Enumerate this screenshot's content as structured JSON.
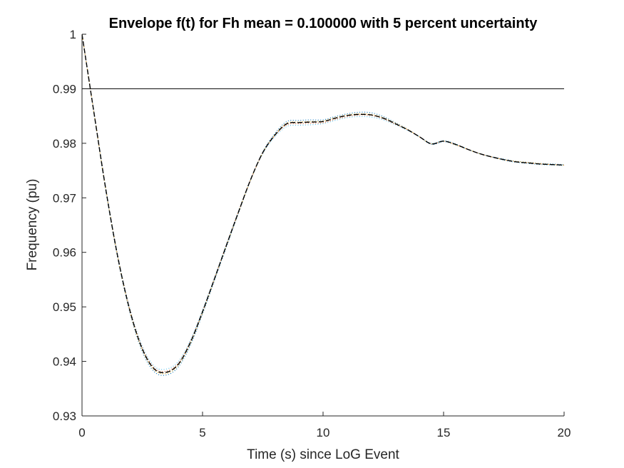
{
  "chart_data": {
    "type": "line",
    "title": "Envelope f(t) for Fh mean = 0.100000 with 5 percent uncertainty",
    "xlabel": "Time (s) since LoG Event",
    "ylabel": "Frequency (pu)",
    "xlim": [
      0,
      20
    ],
    "ylim": [
      0.93,
      1.0
    ],
    "xticks": [
      0,
      5,
      10,
      15,
      20
    ],
    "yticks": [
      0.93,
      0.94,
      0.95,
      0.96,
      0.97,
      0.98,
      0.99,
      1
    ],
    "xtick_labels": [
      "0",
      "5",
      "10",
      "15",
      "20"
    ],
    "ytick_labels": [
      "0.93",
      "0.94",
      "0.95",
      "0.96",
      "0.97",
      "0.98",
      "0.99",
      "1"
    ],
    "grid": false,
    "legend": "none",
    "reference_line": {
      "y": 0.99,
      "color": "#000000"
    },
    "x": [
      0,
      0.5,
      1,
      1.5,
      2,
      2.5,
      3,
      3.5,
      4,
      4.5,
      5,
      5.5,
      6,
      6.5,
      7,
      7.5,
      8,
      8.5,
      9,
      9.5,
      10,
      10.5,
      11,
      11.5,
      12,
      12.5,
      13,
      13.5,
      14,
      14.5,
      15,
      15.5,
      16,
      16.5,
      17,
      17.5,
      18,
      18.5,
      19,
      19.5,
      20
    ],
    "series": [
      {
        "style": "dashed",
        "color": "#000000",
        "values": [
          1.0,
          0.9855,
          0.9712,
          0.9588,
          0.9491,
          0.9423,
          0.9386,
          0.938,
          0.9395,
          0.9435,
          0.9491,
          0.9552,
          0.9614,
          0.9675,
          0.9734,
          0.9783,
          0.9815,
          0.9836,
          0.9838,
          0.9839,
          0.984,
          0.9846,
          0.9851,
          0.9853,
          0.9852,
          0.9846,
          0.9836,
          0.9825,
          0.9812,
          0.9799,
          0.9804,
          0.9798,
          0.9789,
          0.9781,
          0.9775,
          0.977,
          0.9766,
          0.9764,
          0.9762,
          0.9761,
          0.976
        ]
      },
      {
        "style": "dotted",
        "color": "#0072bd",
        "values": [
          1.0,
          0.9853,
          0.9709,
          0.9585,
          0.9487,
          0.9418,
          0.9381,
          0.9375,
          0.939,
          0.943,
          0.9487,
          0.9549,
          0.9611,
          0.9673,
          0.9733,
          0.9784,
          0.9818,
          0.984,
          0.9842,
          0.9843,
          0.9843,
          0.9849,
          0.9854,
          0.9857,
          0.9856,
          0.9849,
          0.9838,
          0.9826,
          0.9812,
          0.9798,
          0.9803,
          0.9797,
          0.9789,
          0.9781,
          0.9775,
          0.9771,
          0.9767,
          0.9765,
          0.9763,
          0.9762,
          0.9761
        ]
      },
      {
        "style": "dotted",
        "color": "#4dbeee",
        "values": [
          1.0,
          0.9857,
          0.9715,
          0.9591,
          0.9495,
          0.9428,
          0.9391,
          0.9386,
          0.94,
          0.9439,
          0.9494,
          0.9554,
          0.9616,
          0.9676,
          0.9734,
          0.9781,
          0.9812,
          0.9831,
          0.9833,
          0.9834,
          0.9836,
          0.9842,
          0.9847,
          0.9849,
          0.9848,
          0.9843,
          0.9834,
          0.9824,
          0.9812,
          0.98,
          0.9805,
          0.9799,
          0.9789,
          0.9781,
          0.9775,
          0.9769,
          0.9765,
          0.9763,
          0.9761,
          0.976,
          0.9759
        ]
      },
      {
        "style": "dotted",
        "color": "#d95319",
        "values": [
          1.0,
          0.9856,
          0.9713,
          0.9589,
          0.9493,
          0.9425,
          0.9388,
          0.9382,
          0.9397,
          0.9437,
          0.9492,
          0.9553,
          0.9615,
          0.9676,
          0.9734,
          0.9782,
          0.9814,
          0.9834,
          0.9836,
          0.9837,
          0.9838,
          0.9844,
          0.9849,
          0.9852,
          0.9851,
          0.9845,
          0.9835,
          0.9825,
          0.9812,
          0.9799,
          0.9804,
          0.9798,
          0.9789,
          0.9781,
          0.9775,
          0.977,
          0.9766,
          0.9764,
          0.9762,
          0.9761,
          0.976
        ]
      },
      {
        "style": "dotted",
        "color": "#edb120",
        "values": [
          1.0,
          0.9854,
          0.9711,
          0.9587,
          0.9489,
          0.9421,
          0.9384,
          0.9378,
          0.9393,
          0.9433,
          0.9489,
          0.9551,
          0.9613,
          0.9674,
          0.9733,
          0.9783,
          0.9816,
          0.9837,
          0.9839,
          0.984,
          0.9841,
          0.9847,
          0.9852,
          0.9854,
          0.9853,
          0.9847,
          0.9837,
          0.9826,
          0.9812,
          0.9799,
          0.9804,
          0.9797,
          0.9789,
          0.9781,
          0.9775,
          0.977,
          0.9767,
          0.9765,
          0.9763,
          0.9761,
          0.976
        ]
      }
    ]
  }
}
